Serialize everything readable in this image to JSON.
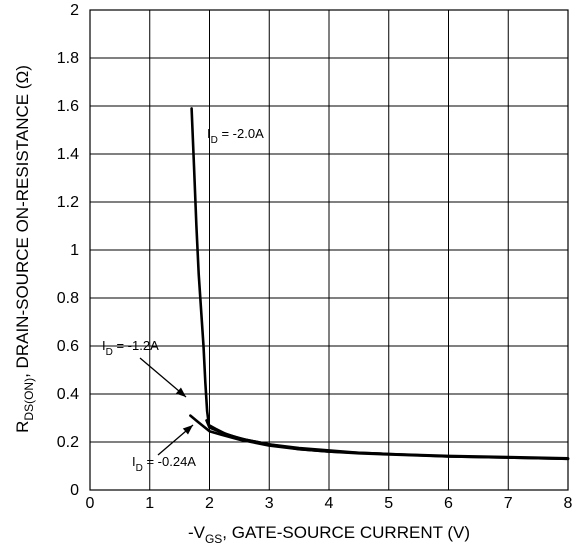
{
  "chart_data": {
    "type": "line",
    "title": "",
    "xlabel": {
      "prefix": "-V",
      "sub": "GS",
      "suffix": ", GATE-SOURCE CURRENT (V)"
    },
    "ylabel": {
      "prefix": "R",
      "sub": "DS(ON)",
      "suffix": ", DRAIN-SOURCE ON-RESISTANCE (Ω)"
    },
    "xlim": [
      0,
      8
    ],
    "ylim": [
      0,
      2
    ],
    "x_ticks": [
      "0",
      "1",
      "2",
      "3",
      "4",
      "5",
      "6",
      "7",
      "8"
    ],
    "y_ticks": [
      "0",
      "0.2",
      "0.4",
      "0.6",
      "0.8",
      "1",
      "1.2",
      "1.4",
      "1.6",
      "1.8",
      "2"
    ],
    "grid": true,
    "series": [
      {
        "name": "I_D = -2.0A",
        "points": [
          [
            1.7,
            1.59
          ],
          [
            1.74,
            1.35
          ],
          [
            1.78,
            1.1
          ],
          [
            1.82,
            0.9
          ],
          [
            1.86,
            0.75
          ],
          [
            1.9,
            0.6
          ],
          [
            1.93,
            0.45
          ],
          [
            1.96,
            0.33
          ],
          [
            1.99,
            0.27
          ],
          [
            2.1,
            0.255
          ],
          [
            2.3,
            0.23
          ],
          [
            2.6,
            0.21
          ],
          [
            3.0,
            0.19
          ],
          [
            3.5,
            0.17
          ],
          [
            4.0,
            0.16
          ],
          [
            4.5,
            0.155
          ],
          [
            5.0,
            0.15
          ],
          [
            6.0,
            0.14
          ],
          [
            7.0,
            0.135
          ],
          [
            8.0,
            0.13
          ]
        ]
      },
      {
        "name": "I_D = -1.2A",
        "points": [
          [
            1.95,
            0.29
          ],
          [
            2.0,
            0.26
          ],
          [
            2.2,
            0.24
          ],
          [
            2.5,
            0.215
          ],
          [
            3.0,
            0.19
          ],
          [
            3.5,
            0.175
          ],
          [
            4.0,
            0.165
          ],
          [
            4.5,
            0.155
          ],
          [
            5.0,
            0.15
          ],
          [
            6.0,
            0.142
          ],
          [
            7.0,
            0.137
          ],
          [
            8.0,
            0.132
          ]
        ]
      },
      {
        "name": "I_D = -0.24A",
        "points": [
          [
            1.68,
            0.31
          ],
          [
            1.8,
            0.285
          ],
          [
            1.9,
            0.265
          ],
          [
            2.0,
            0.245
          ],
          [
            2.2,
            0.23
          ],
          [
            2.5,
            0.21
          ],
          [
            3.0,
            0.185
          ],
          [
            3.5,
            0.17
          ],
          [
            4.0,
            0.16
          ],
          [
            4.5,
            0.153
          ],
          [
            5.0,
            0.148
          ],
          [
            6.0,
            0.14
          ],
          [
            7.0,
            0.135
          ],
          [
            8.0,
            0.13
          ]
        ]
      }
    ],
    "annotations": [
      {
        "id": "ann-2a",
        "prefix": "I",
        "sub": "D",
        "suffix": " = -2.0A"
      },
      {
        "id": "ann-12a",
        "prefix": "I",
        "sub": "D",
        "suffix": " = -1.2A"
      },
      {
        "id": "ann-024a",
        "prefix": "I",
        "sub": "D",
        "suffix": " = -0.24A"
      }
    ]
  }
}
